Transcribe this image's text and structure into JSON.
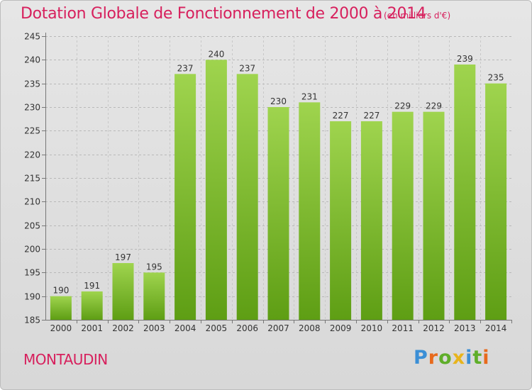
{
  "header": {
    "title": "Dotation Globale de Fonctionnement de 2000 à 2014",
    "unit": "(en milliers d'€)"
  },
  "footer": {
    "commune": "MONTAUDIN",
    "logo": "Proxiti"
  },
  "colors": {
    "accent": "#d7205d",
    "bar_top": "#9fd44e",
    "bar_bottom": "#5e9e14",
    "logo_letters": [
      "#3b8fd6",
      "#e86a1c",
      "#5fae2a",
      "#e8b41c",
      "#3b8fd6",
      "#5fae2a",
      "#e86a1c"
    ]
  },
  "chart_data": {
    "type": "bar",
    "title": "Dotation Globale de Fonctionnement de 2000 à 2014",
    "categories": [
      "2000",
      "2001",
      "2002",
      "2003",
      "2004",
      "2005",
      "2006",
      "2007",
      "2008",
      "2009",
      "2010",
      "2011",
      "2012",
      "2013",
      "2014"
    ],
    "values": [
      190,
      191,
      197,
      195,
      237,
      240,
      237,
      230,
      231,
      227,
      227,
      229,
      229,
      239,
      235
    ],
    "ylim": [
      185,
      245
    ],
    "yticks": [
      185,
      190,
      195,
      200,
      205,
      210,
      215,
      220,
      225,
      230,
      235,
      240,
      245
    ],
    "xlabel": "",
    "ylabel": "",
    "grid": true
  }
}
